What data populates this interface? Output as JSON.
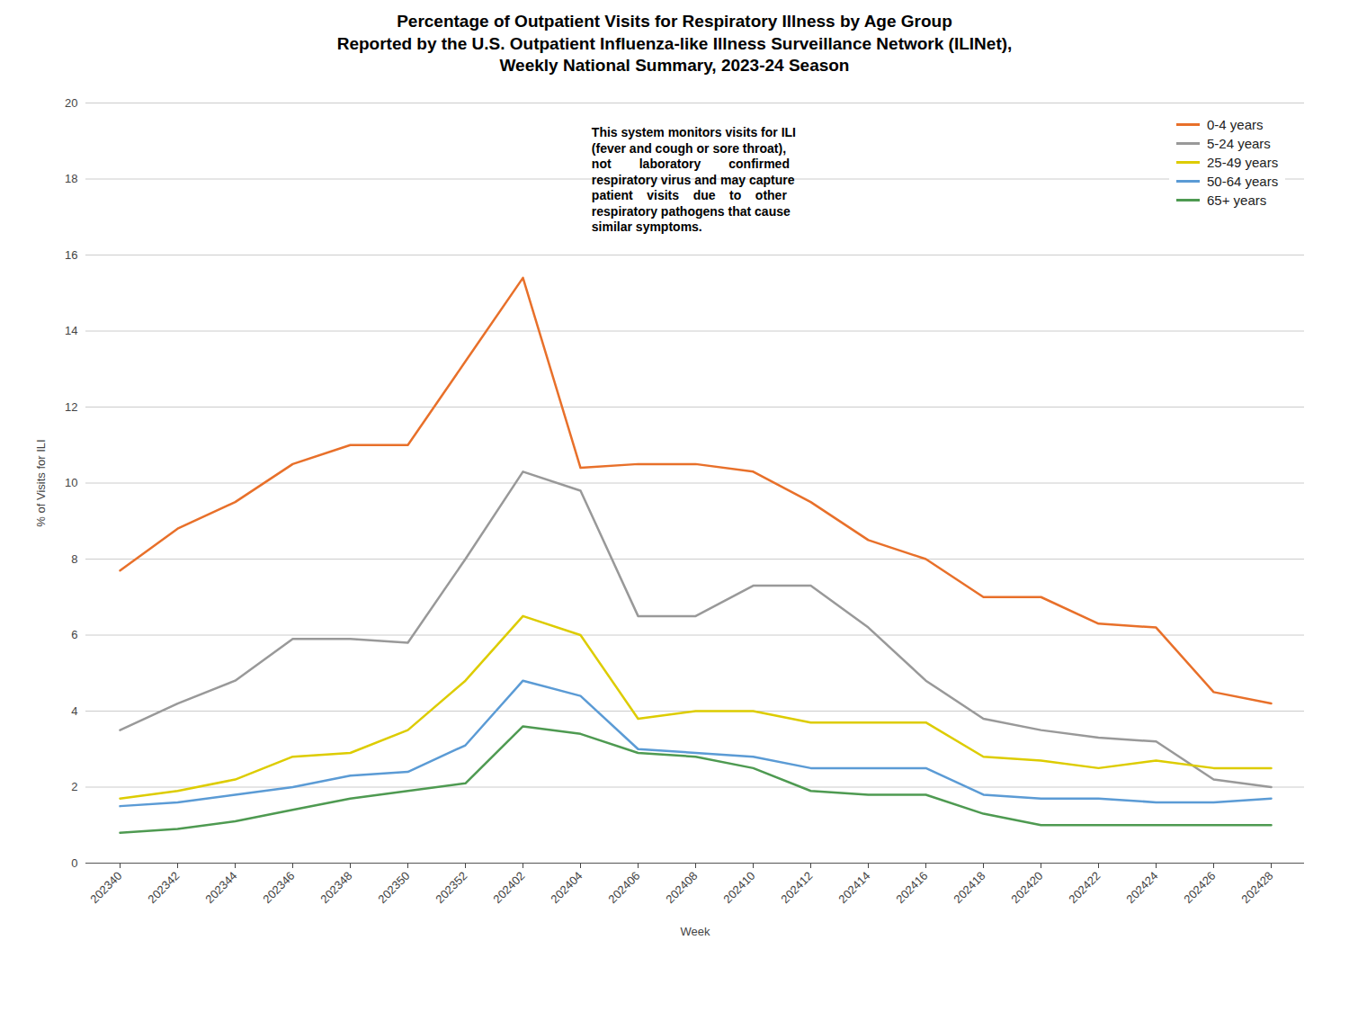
{
  "chart_data": {
    "type": "line",
    "title": "Percentage of Outpatient Visits for Respiratory Illness by Age Group\nReported by the U.S. Outpatient Influenza-like Illness Surveillance Network (ILINet),\nWeekly National Summary, 2023-24 Season",
    "xlabel": "Week",
    "ylabel": "% of Visits for ILI",
    "categories": [
      "202340",
      "202342",
      "202344",
      "202346",
      "202348",
      "202350",
      "202352",
      "202402",
      "202404",
      "202406",
      "202408",
      "202410",
      "202412",
      "202414",
      "202416",
      "202418",
      "202420",
      "202422",
      "202424",
      "202426",
      "202428"
    ],
    "series": [
      {
        "name": "0-4 years",
        "color": "#E8702A",
        "values": [
          7.7,
          8.8,
          9.5,
          10.5,
          11.0,
          11.0,
          13.2,
          15.4,
          10.4,
          10.5,
          10.5,
          10.3,
          9.5,
          8.5,
          8.0,
          7.0,
          7.0,
          6.3,
          6.2,
          4.5,
          4.2
        ]
      },
      {
        "name": "5-24 years",
        "color": "#999999",
        "values": [
          3.5,
          4.2,
          4.8,
          5.9,
          5.9,
          5.8,
          8.0,
          10.3,
          9.8,
          6.5,
          6.5,
          7.3,
          7.3,
          6.2,
          4.8,
          3.8,
          3.5,
          3.3,
          3.2,
          2.2,
          2.0
        ]
      },
      {
        "name": "25-49 years",
        "color": "#DDCC00",
        "values": [
          1.7,
          1.9,
          2.2,
          2.8,
          2.9,
          3.5,
          4.8,
          6.5,
          6.0,
          3.8,
          4.0,
          4.0,
          3.7,
          3.7,
          3.7,
          2.8,
          2.7,
          2.5,
          2.7,
          2.5,
          2.5
        ]
      },
      {
        "name": "50-64 years",
        "color": "#5B9BD5",
        "values": [
          1.5,
          1.6,
          1.8,
          2.0,
          2.3,
          2.4,
          3.1,
          4.8,
          4.4,
          3.0,
          2.9,
          2.8,
          2.5,
          2.5,
          2.5,
          1.8,
          1.7,
          1.7,
          1.6,
          1.6,
          1.7
        ]
      },
      {
        "name": "65+ years",
        "color": "#4E9A51",
        "values": [
          0.8,
          0.9,
          1.1,
          1.4,
          1.7,
          1.9,
          2.1,
          3.6,
          3.4,
          2.9,
          2.8,
          2.5,
          1.9,
          1.8,
          1.8,
          1.3,
          1.0,
          1.0,
          1.0,
          1.0,
          1.0
        ]
      }
    ],
    "ylim": [
      0,
      20
    ],
    "yticks": [
      0,
      2,
      4,
      6,
      8,
      10,
      12,
      14,
      16,
      18,
      20
    ],
    "grid": true,
    "legend": "upper right",
    "annotations": [
      "This system monitors visits for ILI\n(fever and cough or sore throat),\nnot        laboratory        confirmed\nrespiratory virus and may capture\npatient    visits    due    to    other\nrespiratory pathogens that cause\nsimilar symptoms."
    ]
  }
}
